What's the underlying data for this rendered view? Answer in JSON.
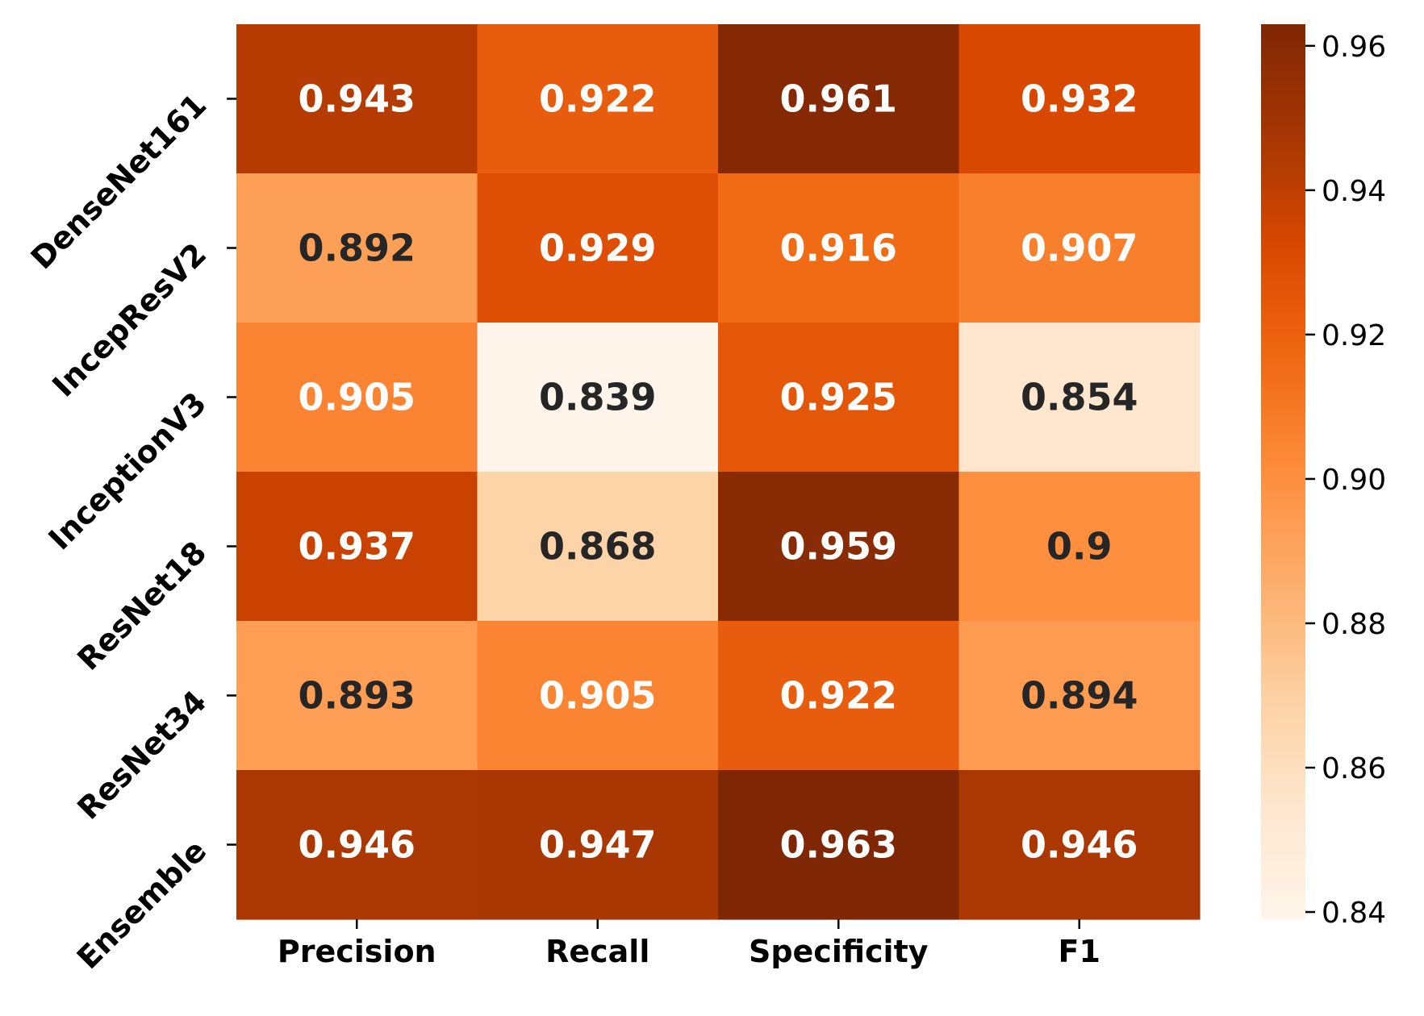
{
  "chart_data": {
    "type": "heatmap",
    "title": "",
    "xlabel": "",
    "ylabel": "",
    "columns": [
      "Precision",
      "Recall",
      "Specificity",
      "F1"
    ],
    "rows": [
      "DenseNet161",
      "IncepResV2",
      "InceptionV3",
      "ResNet18",
      "ResNet34",
      "Ensemble"
    ],
    "values": [
      [
        0.943,
        0.922,
        0.961,
        0.932
      ],
      [
        0.892,
        0.929,
        0.916,
        0.907
      ],
      [
        0.905,
        0.839,
        0.925,
        0.854
      ],
      [
        0.937,
        0.868,
        0.959,
        0.9
      ],
      [
        0.893,
        0.905,
        0.922,
        0.894
      ],
      [
        0.946,
        0.947,
        0.963,
        0.946
      ]
    ],
    "cell_labels": [
      [
        "0.943",
        "0.922",
        "0.961",
        "0.932"
      ],
      [
        "0.892",
        "0.929",
        "0.916",
        "0.907"
      ],
      [
        "0.905",
        "0.839",
        "0.925",
        "0.854"
      ],
      [
        "0.937",
        "0.868",
        "0.959",
        "0.9"
      ],
      [
        "0.893",
        "0.905",
        "0.922",
        "0.894"
      ],
      [
        "0.946",
        "0.947",
        "0.963",
        "0.946"
      ]
    ],
    "colormap": "Oranges",
    "vmin": 0.839,
    "vmax": 0.963,
    "colorbar": {
      "ticks": [
        0.84,
        0.86,
        0.88,
        0.9,
        0.92,
        0.94,
        0.96
      ],
      "tick_labels": [
        "0.84",
        "0.86",
        "0.88",
        "0.90",
        "0.92",
        "0.94",
        "0.96"
      ],
      "placement": "right"
    },
    "label_colors": {
      "dark": "#262626",
      "light": "#ffffff"
    }
  }
}
